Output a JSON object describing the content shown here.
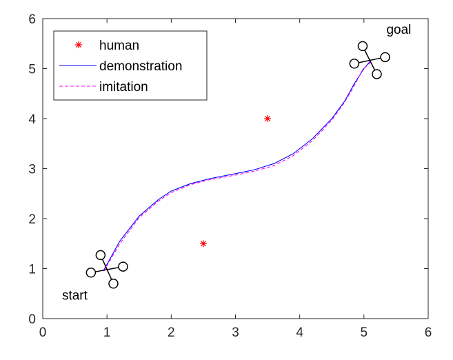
{
  "chart_data": {
    "type": "line",
    "xlim": [
      0,
      6
    ],
    "ylim": [
      0,
      6
    ],
    "x_ticks": [
      "0",
      "1",
      "2",
      "3",
      "4",
      "5",
      "6"
    ],
    "y_ticks": [
      "0",
      "1",
      "2",
      "3",
      "4",
      "5",
      "6"
    ],
    "grid": false,
    "legend_position": "top-left",
    "legend": [
      {
        "label": "human",
        "marker": "asterisk",
        "color": "#ff0000"
      },
      {
        "label": "demonstration",
        "style": "solid",
        "color": "#0000ff"
      },
      {
        "label": "imitation",
        "style": "dashed",
        "color": "#ff00ff"
      }
    ],
    "series": [
      {
        "name": "human",
        "kind": "scatter",
        "color": "#ff0000",
        "points": [
          [
            2.5,
            1.5
          ],
          [
            3.5,
            4.0
          ]
        ]
      },
      {
        "name": "demonstration",
        "kind": "line",
        "color": "#0000ff",
        "points": [
          [
            0.95,
            0.97
          ],
          [
            1.2,
            1.55
          ],
          [
            1.5,
            2.05
          ],
          [
            1.8,
            2.38
          ],
          [
            2.0,
            2.55
          ],
          [
            2.3,
            2.7
          ],
          [
            2.6,
            2.8
          ],
          [
            3.0,
            2.9
          ],
          [
            3.3,
            2.98
          ],
          [
            3.6,
            3.1
          ],
          [
            3.9,
            3.3
          ],
          [
            4.2,
            3.6
          ],
          [
            4.5,
            4.0
          ],
          [
            4.7,
            4.35
          ],
          [
            4.85,
            4.7
          ],
          [
            5.0,
            5.0
          ],
          [
            5.1,
            5.15
          ]
        ]
      },
      {
        "name": "imitation",
        "kind": "line",
        "color": "#ff00ff",
        "points": [
          [
            0.95,
            0.95
          ],
          [
            1.2,
            1.5
          ],
          [
            1.5,
            2.02
          ],
          [
            1.8,
            2.35
          ],
          [
            2.0,
            2.52
          ],
          [
            2.3,
            2.68
          ],
          [
            2.6,
            2.78
          ],
          [
            3.0,
            2.87
          ],
          [
            3.3,
            2.95
          ],
          [
            3.6,
            3.06
          ],
          [
            3.9,
            3.26
          ],
          [
            4.2,
            3.56
          ],
          [
            4.5,
            3.97
          ],
          [
            4.7,
            4.33
          ],
          [
            4.85,
            4.66
          ],
          [
            4.98,
            4.98
          ],
          [
            5.1,
            5.12
          ]
        ]
      }
    ],
    "quadrotors": [
      {
        "label": "start",
        "center": [
          1.0,
          1.0
        ],
        "rotors": [
          [
            0.9,
            1.27
          ],
          [
            1.25,
            1.04
          ],
          [
            1.1,
            0.7
          ],
          [
            0.75,
            0.92
          ]
        ]
      },
      {
        "label": "goal",
        "center": [
          5.1,
          5.17
        ],
        "rotors": [
          [
            4.98,
            5.45
          ],
          [
            5.33,
            5.23
          ],
          [
            5.2,
            4.89
          ],
          [
            4.85,
            5.1
          ]
        ]
      }
    ],
    "annotations": [
      {
        "text": "start",
        "x": 0.3,
        "y": 0.38
      },
      {
        "text": "goal",
        "x": 5.35,
        "y": 5.7
      }
    ]
  }
}
